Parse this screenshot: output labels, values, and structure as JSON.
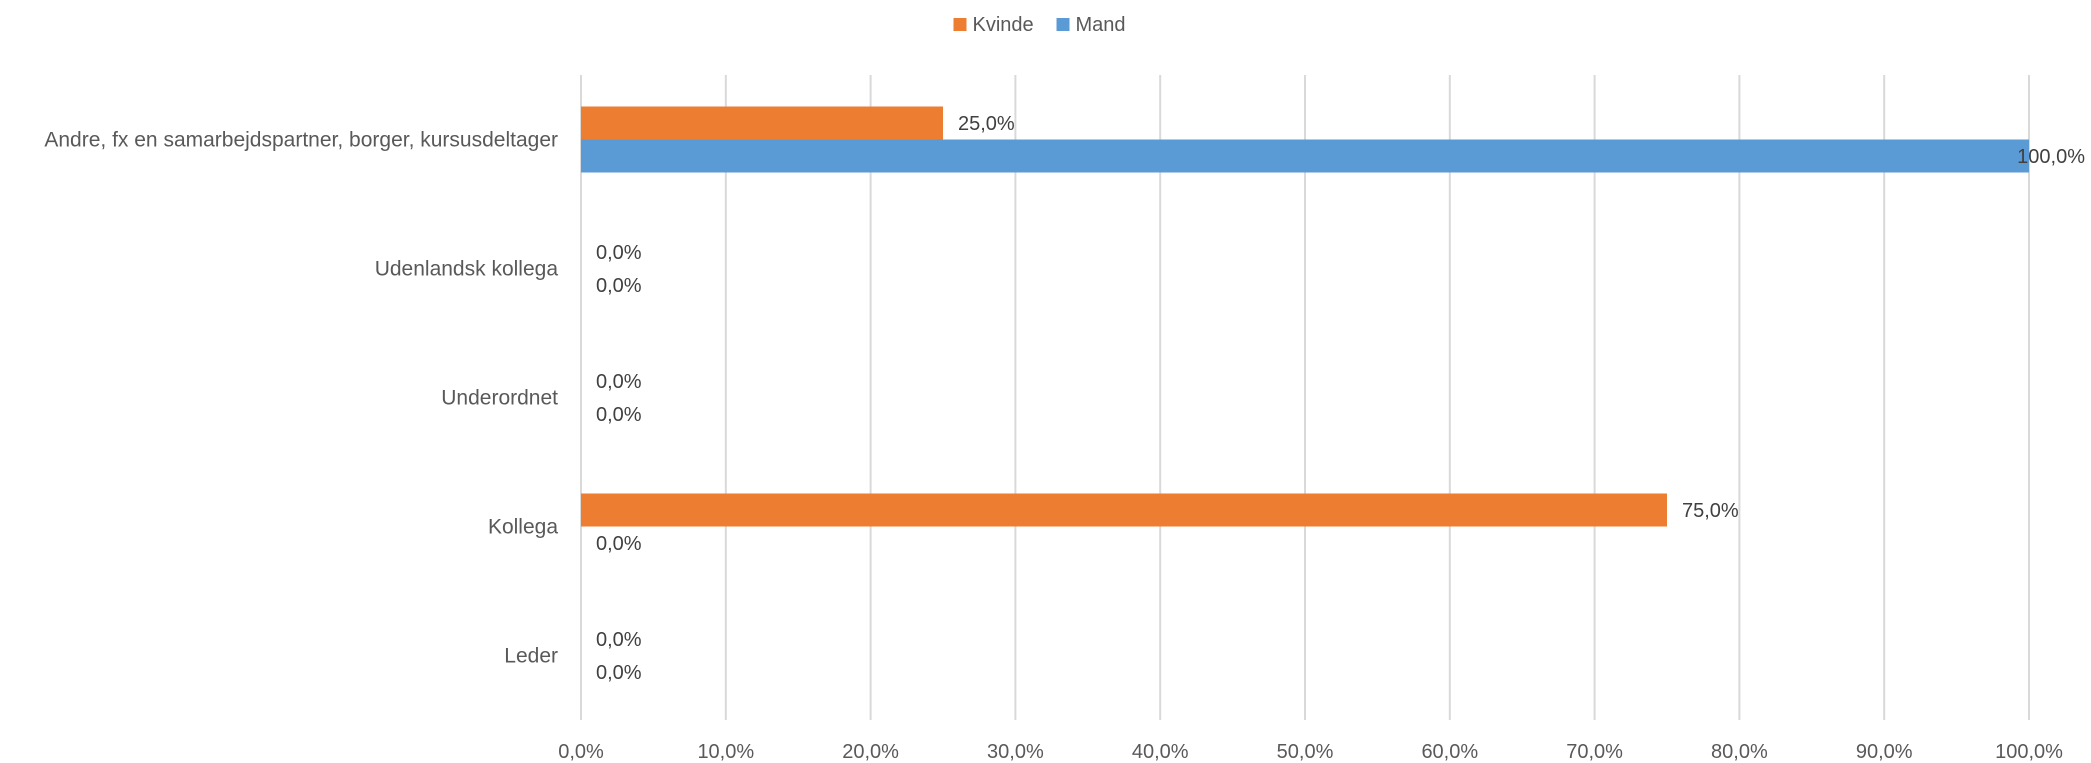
{
  "chart_data": {
    "type": "bar",
    "orientation": "horizontal",
    "title": "",
    "xlabel": "",
    "ylabel": "",
    "categories": [
      "Andre, fx en samarbejdspartner, borger, kursusdeltager",
      "Udenlandsk kollega",
      "Underordnet",
      "Kollega",
      "Leder"
    ],
    "series": [
      {
        "name": "Kvinde",
        "color": "#ED7D31",
        "values": [
          25.0,
          0.0,
          0.0,
          75.0,
          0.0
        ],
        "labels": [
          "25,0%",
          "0,0%",
          "0,0%",
          "75,0%",
          "0,0%"
        ]
      },
      {
        "name": "Mand",
        "color": "#5B9BD5",
        "values": [
          100.0,
          0.0,
          0.0,
          0.0,
          0.0
        ],
        "labels": [
          "100,0%",
          "0,0%",
          "0,0%",
          "0,0%",
          "0,0%"
        ]
      }
    ],
    "xlim": [
      0,
      100
    ],
    "x_ticks": [
      0,
      10,
      20,
      30,
      40,
      50,
      60,
      70,
      80,
      90,
      100
    ],
    "x_tick_labels": [
      "0,0%",
      "10,0%",
      "20,0%",
      "30,0%",
      "40,0%",
      "50,0%",
      "60,0%",
      "70,0%",
      "80,0%",
      "90,0%",
      "100,0%"
    ],
    "grid": true,
    "legend": "top-center"
  }
}
